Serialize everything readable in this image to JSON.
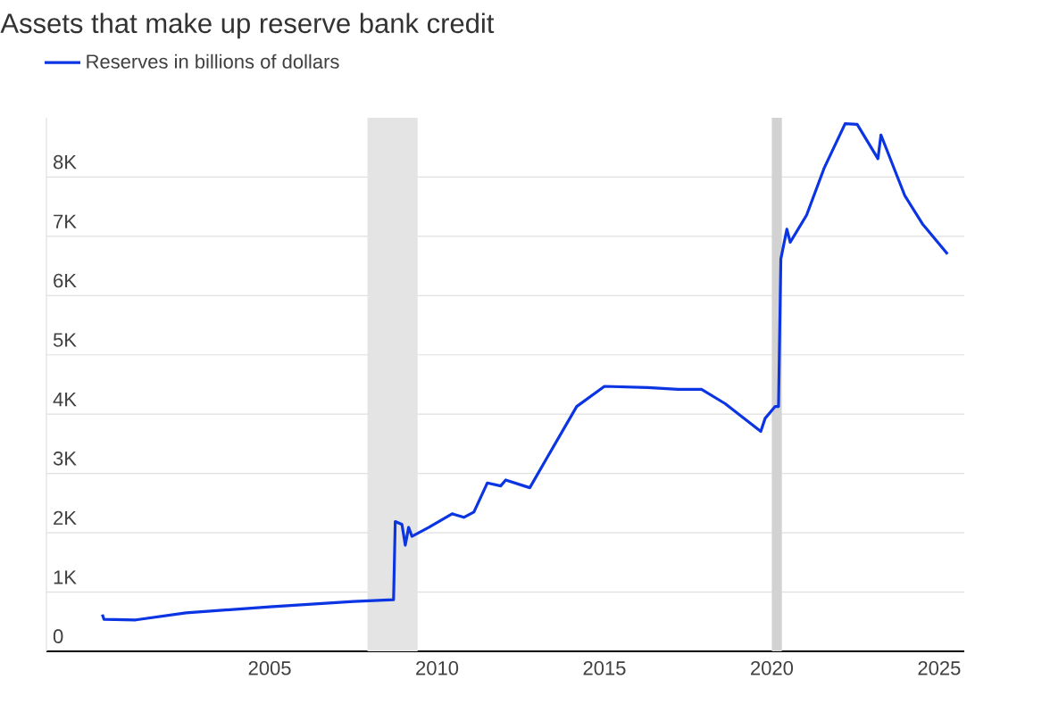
{
  "chart_data": {
    "type": "line",
    "title": "Assets that make up reserve bank credit",
    "series": [
      {
        "name": "Reserves in billions of dollars",
        "color": "#0b34e3",
        "x": [
          2000.0,
          2000.05,
          2001.0,
          2002.5,
          2005.0,
          2007.5,
          2008.7,
          2008.75,
          2008.95,
          2009.05,
          2009.15,
          2009.25,
          2009.75,
          2010.45,
          2010.8,
          2011.1,
          2011.5,
          2011.9,
          2012.05,
          2012.6,
          2012.77,
          2013.3,
          2014.17,
          2015.0,
          2016.3,
          2017.2,
          2017.9,
          2018.6,
          2019.67,
          2019.8,
          2020.1,
          2020.2,
          2020.27,
          2020.45,
          2020.55,
          2021.04,
          2021.57,
          2022.19,
          2022.55,
          2023.17,
          2023.26,
          2023.97,
          2024.5,
          2025.25
        ],
        "values": [
          620,
          540,
          530,
          650,
          750,
          840,
          870,
          2190,
          2140,
          1790,
          2090,
          1940,
          2090,
          2320,
          2260,
          2350,
          2840,
          2790,
          2890,
          2790,
          2760,
          3280,
          4130,
          4470,
          4450,
          4420,
          4420,
          4180,
          3710,
          3930,
          4130,
          4130,
          6620,
          7120,
          6900,
          7360,
          8160,
          8900,
          8890,
          8310,
          8710,
          7690,
          7210,
          6700
        ]
      }
    ],
    "xlim": [
      1998.33,
      2025.75
    ],
    "xticks": [
      2005,
      2010,
      2015,
      2020,
      2025
    ],
    "ylim": [
      0,
      9000
    ],
    "yticks": [
      0,
      {
        "value": 1000,
        "label": "1K"
      },
      {
        "value": 2000,
        "label": "2K"
      },
      {
        "value": 3000,
        "label": "3K"
      },
      {
        "value": 4000,
        "label": "4K"
      },
      {
        "value": 5000,
        "label": "5K"
      },
      {
        "value": 6000,
        "label": "6K"
      },
      {
        "value": 7000,
        "label": "7K"
      },
      {
        "value": 8000,
        "label": "8K"
      }
    ],
    "bands": [
      {
        "axis": "x",
        "from": 2007.92,
        "to": 2009.42,
        "color": "#e4e4e4"
      },
      {
        "axis": "x",
        "from": 2020.0,
        "to": 2020.3,
        "color": "#d2d2d2"
      }
    ],
    "grid": "y",
    "legend": "top left",
    "line_style": "solid"
  }
}
